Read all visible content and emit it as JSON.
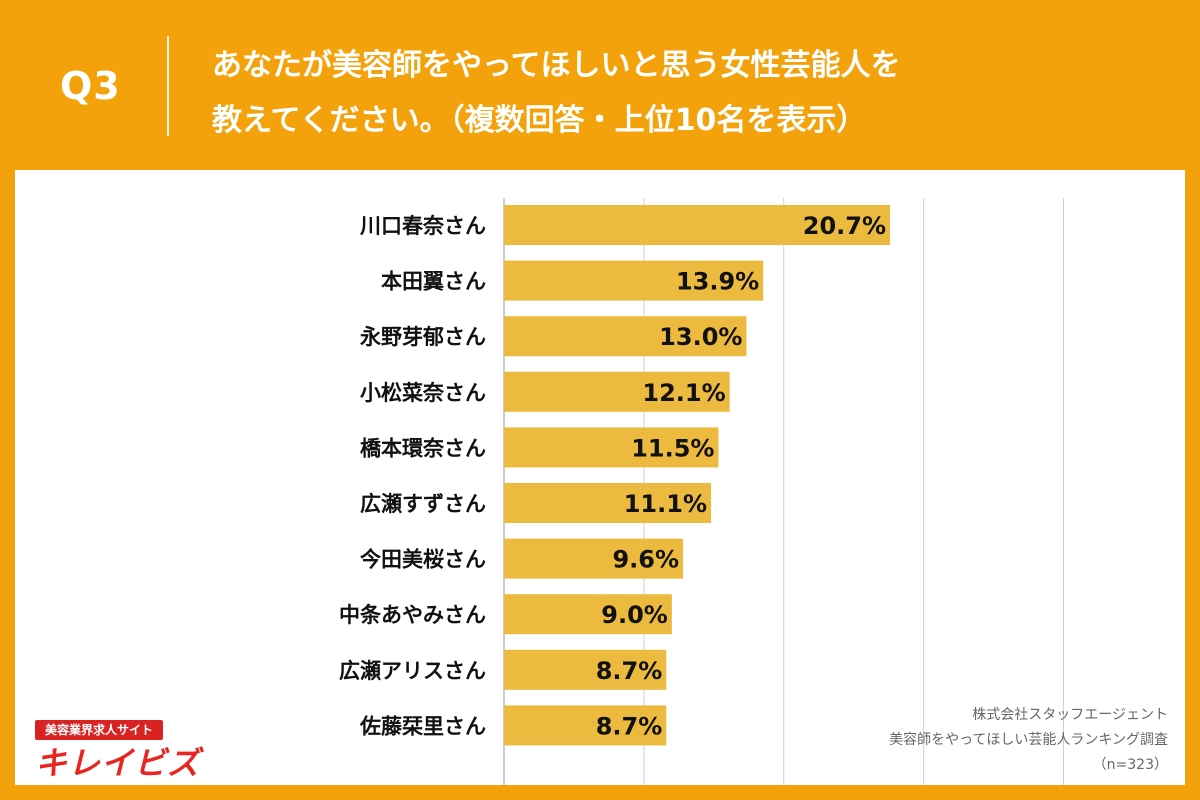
{
  "header": {
    "question_number": "Q3",
    "title_line1": "あなたが美容師をやってほしいと思う女性芸能人を",
    "title_line2": "教えてください。（複数回答・上位10名を表示）"
  },
  "logo": {
    "tagline": "美容業界求人サイト",
    "brand": "キレイビズ"
  },
  "source": {
    "company": "株式会社スタッフエージェント",
    "survey": "美容師をやってほしい芸能人ランキング調査",
    "sample": "（n=323）"
  },
  "colors": {
    "background": "#F3A20C",
    "bar": "#EBBA3E",
    "grid": "#CFCFCF",
    "text": "#111111"
  },
  "chart_data": {
    "type": "bar",
    "orientation": "horizontal",
    "categories": [
      "川口春奈さん",
      "本田翼さん",
      "永野芽郁さん",
      "小松菜奈さん",
      "橋本環奈さん",
      "広瀬すずさん",
      "今田美桜さん",
      "中条あやみさん",
      "広瀬アリスさん",
      "佐藤栞里さん"
    ],
    "values": [
      20.7,
      13.9,
      13.0,
      12.1,
      11.5,
      11.1,
      9.6,
      9.0,
      8.7,
      8.7
    ],
    "value_labels": [
      "20.7%",
      "13.9%",
      "13.0%",
      "12.1%",
      "11.5%",
      "11.1%",
      "9.6%",
      "9.0%",
      "8.7%",
      "8.7%"
    ],
    "xlim": [
      0,
      30
    ],
    "grid": true
  }
}
